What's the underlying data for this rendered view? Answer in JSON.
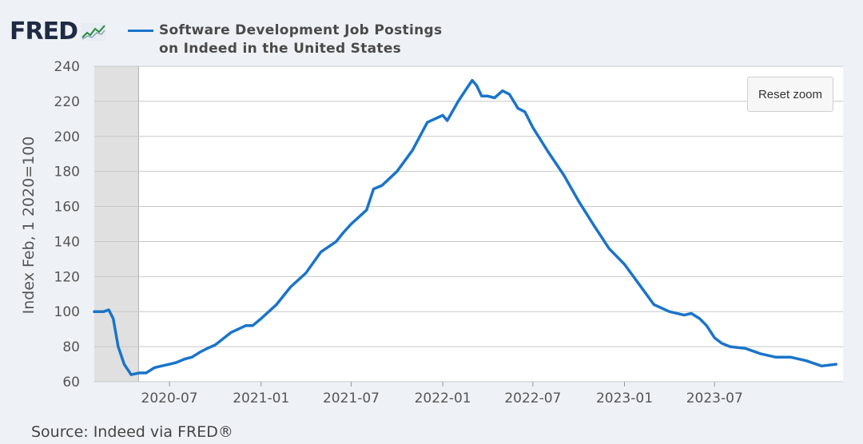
{
  "logo": {
    "text": "FRED",
    "icon": "line-chart-icon"
  },
  "reset_zoom_label": "Reset zoom",
  "source_text": "Source: Indeed via FRED®",
  "colors": {
    "series": "#1a74c9",
    "plot_bg": "#ffffff",
    "shading": "#e0e0e0",
    "grid": "#c8c8c8",
    "page_bg": "#eef2f7"
  },
  "chart_data": {
    "type": "line",
    "title": "",
    "xlabel": "",
    "ylabel": "Index Feb, 1 2020=100",
    "ylim": [
      60,
      240
    ],
    "xlim": [
      "2020-02-01",
      "2024-03-15"
    ],
    "y_ticks": [
      60,
      80,
      100,
      120,
      140,
      160,
      180,
      200,
      220,
      240
    ],
    "x_ticks": [
      "2020-07",
      "2021-01",
      "2021-07",
      "2022-01",
      "2022-07",
      "2023-01",
      "2023-07"
    ],
    "grid": true,
    "legend_position": "top",
    "shaded_period": {
      "start": "2020-02-01",
      "end": "2020-04-30"
    },
    "series": [
      {
        "name": "Software Development Job Postings on Indeed in the United States",
        "x": [
          "2020-02-01",
          "2020-02-20",
          "2020-03-01",
          "2020-03-10",
          "2020-03-20",
          "2020-04-01",
          "2020-04-15",
          "2020-05-01",
          "2020-05-15",
          "2020-06-01",
          "2020-06-15",
          "2020-07-01",
          "2020-07-15",
          "2020-08-01",
          "2020-08-15",
          "2020-09-01",
          "2020-09-15",
          "2020-10-01",
          "2020-11-01",
          "2020-12-01",
          "2020-12-15",
          "2021-01-01",
          "2021-02-01",
          "2021-03-01",
          "2021-04-01",
          "2021-05-01",
          "2021-06-01",
          "2021-06-15",
          "2021-07-01",
          "2021-08-01",
          "2021-08-15",
          "2021-09-01",
          "2021-10-01",
          "2021-11-01",
          "2021-12-01",
          "2022-01-01",
          "2022-01-10",
          "2022-02-01",
          "2022-02-15",
          "2022-03-01",
          "2022-03-10",
          "2022-03-20",
          "2022-04-01",
          "2022-04-15",
          "2022-05-01",
          "2022-05-15",
          "2022-06-01",
          "2022-06-15",
          "2022-07-01",
          "2022-08-01",
          "2022-09-01",
          "2022-10-01",
          "2022-11-01",
          "2022-12-01",
          "2023-01-01",
          "2023-02-01",
          "2023-03-01",
          "2023-04-01",
          "2023-05-01",
          "2023-05-15",
          "2023-06-01",
          "2023-06-15",
          "2023-07-01",
          "2023-07-15",
          "2023-08-01",
          "2023-09-01",
          "2023-10-01",
          "2023-11-01",
          "2023-12-01",
          "2024-01-01",
          "2024-02-01",
          "2024-03-01"
        ],
        "values": [
          100,
          100,
          101,
          96,
          80,
          70,
          64,
          65,
          65,
          68,
          69,
          70,
          71,
          73,
          74,
          77,
          79,
          81,
          88,
          92,
          92,
          96,
          104,
          114,
          122,
          134,
          140,
          145,
          150,
          158,
          170,
          172,
          180,
          192,
          208,
          212,
          209,
          220,
          226,
          232,
          229,
          223,
          223,
          222,
          226,
          224,
          216,
          214,
          205,
          191,
          178,
          163,
          149,
          136,
          127,
          115,
          104,
          100,
          98,
          99,
          96,
          92,
          85,
          82,
          80,
          79,
          76,
          74,
          74,
          72,
          69,
          70
        ]
      }
    ]
  }
}
